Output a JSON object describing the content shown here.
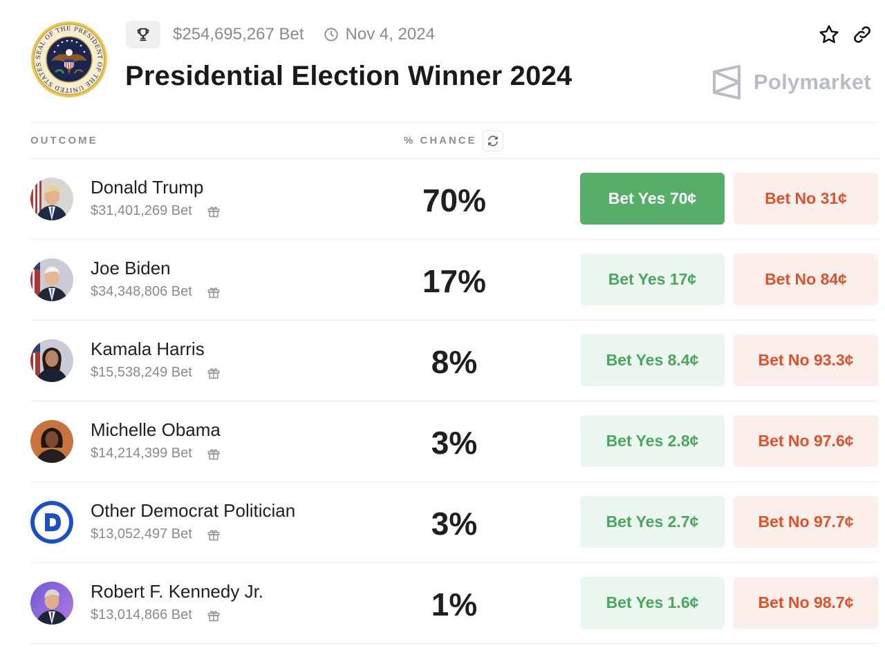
{
  "header": {
    "total_volume": "$254,695,267 Bet",
    "end_date": "Nov 4, 2024",
    "title": "Presidential Election Winner 2024",
    "seal_text": "SEAL OF THE PRESIDENT OF THE UNITED STATES",
    "brand": "Polymarket"
  },
  "table": {
    "col_outcome": "OUTCOME",
    "col_chance": "% CHANCE"
  },
  "outcomes": [
    {
      "name": "Donald Trump",
      "volume": "$31,401,269 Bet",
      "chance": "70%",
      "yes": "Bet Yes 70¢",
      "no": "Bet No 31¢"
    },
    {
      "name": "Joe Biden",
      "volume": "$34,348,806 Bet",
      "chance": "17%",
      "yes": "Bet Yes 17¢",
      "no": "Bet No 84¢"
    },
    {
      "name": "Kamala Harris",
      "volume": "$15,538,249 Bet",
      "chance": "8%",
      "yes": "Bet Yes 8.4¢",
      "no": "Bet No 93.3¢"
    },
    {
      "name": "Michelle Obama",
      "volume": "$14,214,399 Bet",
      "chance": "3%",
      "yes": "Bet Yes 2.8¢",
      "no": "Bet No 97.6¢"
    },
    {
      "name": "Other Democrat Politician",
      "volume": "$13,052,497 Bet",
      "chance": "3%",
      "yes": "Bet Yes 2.7¢",
      "no": "Bet No 97.7¢"
    },
    {
      "name": "Robert F. Kennedy Jr.",
      "volume": "$13,014,866 Bet",
      "chance": "1%",
      "yes": "Bet Yes 1.6¢",
      "no": "Bet No 98.7¢"
    }
  ],
  "colors": {
    "yes_active_bg": "#56ae69",
    "yes_bg": "#ebf6ee",
    "yes_text": "#4ca55e",
    "no_bg": "#fbeeeb",
    "no_text": "#d9542e",
    "democrat_blue": "#1d4fc4"
  }
}
